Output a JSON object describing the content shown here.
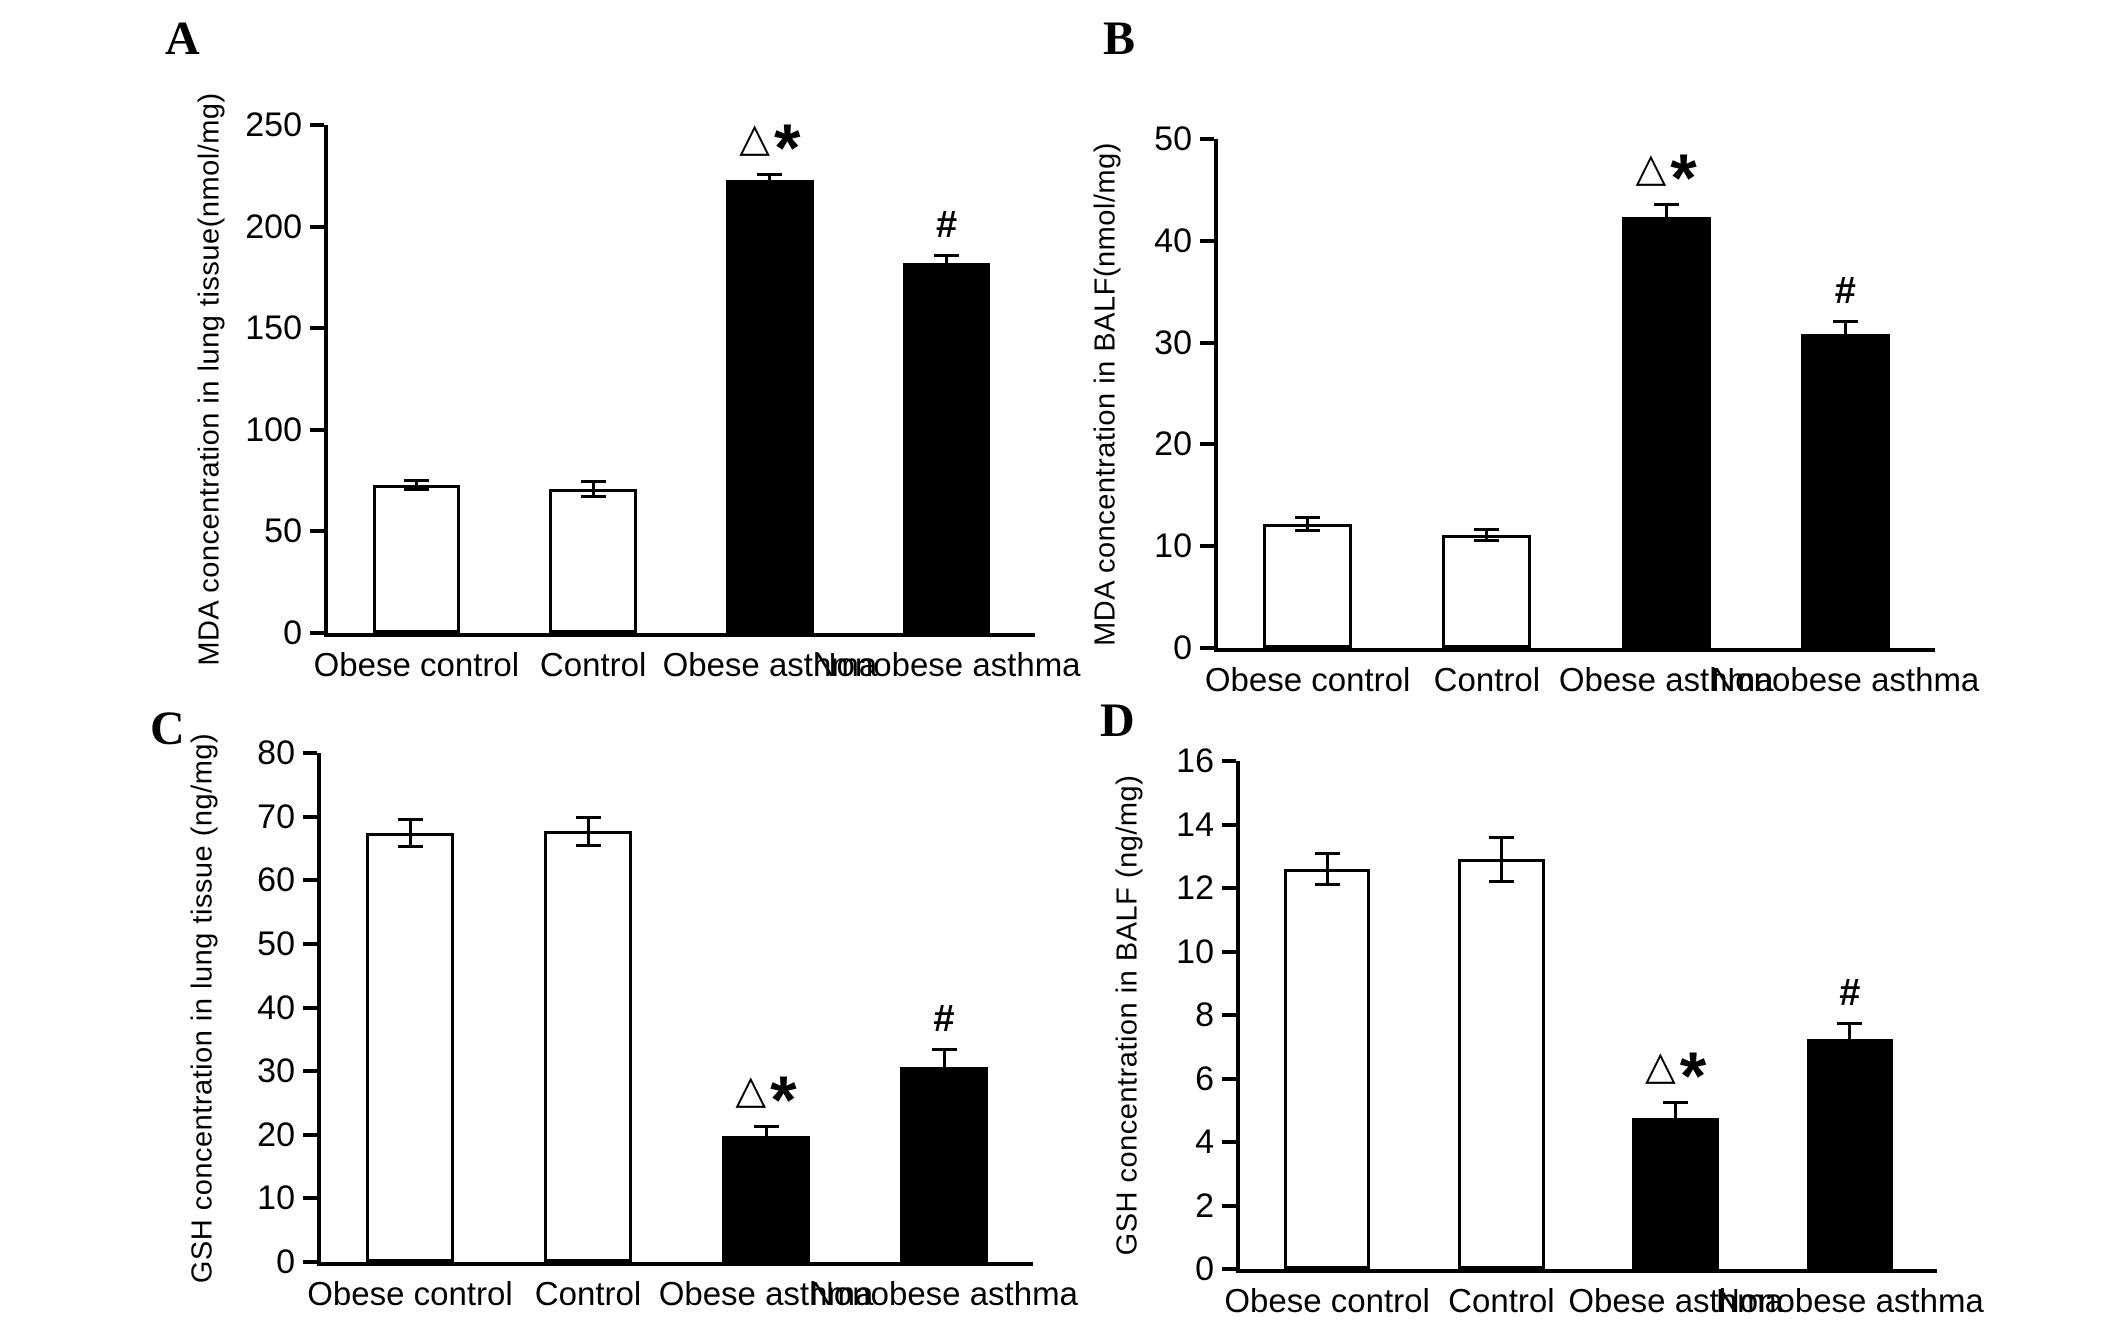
{
  "figure": {
    "background": "#ffffff",
    "bar_outline_color": "#000000"
  },
  "chart_data": [
    {
      "panel": "A",
      "type": "bar",
      "ylabel": "MDA concentration in lung tissue(nmol/mg)",
      "xlabel": "",
      "categories": [
        "Obese control",
        "Control",
        "Obese asthma",
        "Nonobese asthma"
      ],
      "values": [
        73,
        71,
        223,
        182
      ],
      "errors": [
        2.5,
        4,
        3,
        4
      ],
      "ylim": [
        0,
        250
      ],
      "ytick_step": 50,
      "yticks": [
        0,
        50,
        100,
        150,
        200,
        250
      ],
      "grid": false,
      "legend": "none",
      "bar_fills": [
        "#ffffff",
        "#ffffff",
        "#000000",
        "#000000"
      ],
      "annotations": [
        [],
        [],
        [
          "△",
          "*"
        ],
        [
          "#"
        ]
      ]
    },
    {
      "panel": "B",
      "type": "bar",
      "ylabel": "MDA concentration in BALF(nmol/mg)",
      "xlabel": "",
      "categories": [
        "Obese control",
        "Control",
        "Obese asthma",
        "Nonobese asthma"
      ],
      "values": [
        12.2,
        11.1,
        42.3,
        30.8
      ],
      "errors": [
        0.7,
        0.6,
        1.3,
        1.3
      ],
      "ylim": [
        0,
        50
      ],
      "ytick_step": 10,
      "yticks": [
        0,
        10,
        20,
        30,
        40,
        50
      ],
      "grid": false,
      "legend": "none",
      "bar_fills": [
        "#ffffff",
        "#ffffff",
        "#000000",
        "#000000"
      ],
      "annotations": [
        [],
        [],
        [
          "△",
          "*"
        ],
        [
          "#"
        ]
      ]
    },
    {
      "panel": "C",
      "type": "bar",
      "ylabel": "GSH concentration in lung tissue (ng/mg)",
      "xlabel": "",
      "categories": [
        "Obese control",
        "Control",
        "Obese asthma",
        "Nonobese asthma"
      ],
      "values": [
        67.5,
        67.7,
        19.8,
        30.7
      ],
      "errors": [
        2.2,
        2.3,
        1.5,
        2.7
      ],
      "ylim": [
        0,
        80
      ],
      "ytick_step": 10,
      "yticks": [
        0,
        10,
        20,
        30,
        40,
        50,
        60,
        70,
        80
      ],
      "grid": false,
      "legend": "none",
      "bar_fills": [
        "#ffffff",
        "#ffffff",
        "#000000",
        "#000000"
      ],
      "annotations": [
        [],
        [],
        [
          "△",
          "*"
        ],
        [
          "#"
        ]
      ]
    },
    {
      "panel": "D",
      "type": "bar",
      "ylabel": "GSH concentration in BALF (ng/mg)",
      "xlabel": "",
      "categories": [
        "Obese control",
        "Control",
        "Obese asthma",
        "Nonobese asthma"
      ],
      "values": [
        12.6,
        12.9,
        4.75,
        7.25
      ],
      "errors": [
        0.5,
        0.7,
        0.5,
        0.5
      ],
      "ylim": [
        0,
        16
      ],
      "ytick_step": 2,
      "yticks": [
        0,
        2,
        4,
        6,
        8,
        10,
        12,
        14,
        16
      ],
      "grid": false,
      "legend": "none",
      "bar_fills": [
        "#ffffff",
        "#ffffff",
        "#000000",
        "#000000"
      ],
      "annotations": [
        [],
        [],
        [
          "△",
          "*"
        ],
        [
          "#"
        ]
      ]
    }
  ]
}
